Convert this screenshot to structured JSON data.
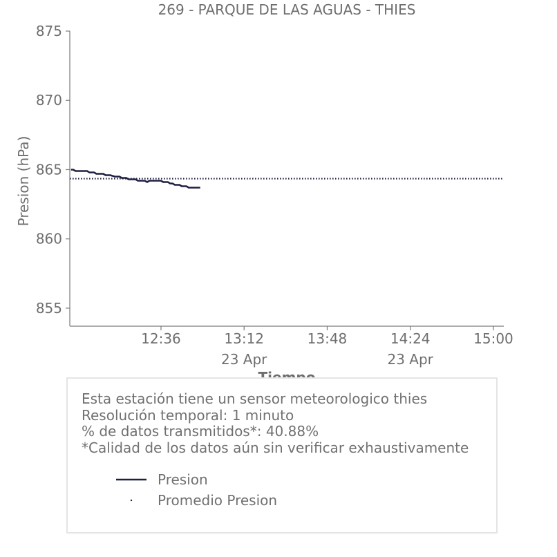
{
  "chart_data": {
    "type": "line",
    "title": "269 - PARQUE DE LAS AGUAS - THIES",
    "xlabel": "Tiempo",
    "ylabel": "Presion (hPa)",
    "ylim": [
      853.7,
      875
    ],
    "y_ticks": [
      855,
      860,
      865,
      870,
      875
    ],
    "x_tick_labels": [
      {
        "time": "12:36",
        "date": ""
      },
      {
        "time": "13:12",
        "date": "23 Apr"
      },
      {
        "time": "13:48",
        "date": ""
      },
      {
        "time": "14:24",
        "date": "23 Apr"
      },
      {
        "time": "15:00",
        "date": ""
      }
    ],
    "xlim_minutes": [
      716.5,
      904.5
    ],
    "x_tick_minutes": [
      756,
      792,
      828,
      864,
      900
    ],
    "series": [
      {
        "name": "Presion",
        "color": "#1f2041",
        "style": "solid",
        "points": [
          [
            717,
            865.0
          ],
          [
            718,
            865.0
          ],
          [
            719,
            864.9
          ],
          [
            720,
            864.9
          ],
          [
            721,
            864.9
          ],
          [
            722,
            864.9
          ],
          [
            724,
            864.9
          ],
          [
            725,
            864.8
          ],
          [
            726,
            864.8
          ],
          [
            727,
            864.8
          ],
          [
            728,
            864.7
          ],
          [
            729,
            864.7
          ],
          [
            730,
            864.7
          ],
          [
            731,
            864.7
          ],
          [
            732,
            864.6
          ],
          [
            733,
            864.6
          ],
          [
            734,
            864.6
          ],
          [
            736,
            864.5
          ],
          [
            737,
            864.5
          ],
          [
            738,
            864.5
          ],
          [
            739,
            864.4
          ],
          [
            740,
            864.4
          ],
          [
            741,
            864.4
          ],
          [
            742,
            864.3
          ],
          [
            743,
            864.3
          ],
          [
            744,
            864.3
          ],
          [
            745,
            864.3
          ],
          [
            746,
            864.2
          ],
          [
            747,
            864.2
          ],
          [
            748,
            864.2
          ],
          [
            749,
            864.2
          ],
          [
            750,
            864.1
          ],
          [
            751,
            864.2
          ],
          [
            752,
            864.2
          ],
          [
            754,
            864.2
          ],
          [
            755,
            864.2
          ],
          [
            756,
            864.2
          ],
          [
            757,
            864.1
          ],
          [
            758,
            864.1
          ],
          [
            759,
            864.1
          ],
          [
            760,
            864.0
          ],
          [
            761,
            864.0
          ],
          [
            762,
            863.9
          ],
          [
            763,
            863.9
          ],
          [
            764,
            863.9
          ],
          [
            765,
            863.8
          ],
          [
            766,
            863.8
          ],
          [
            767,
            863.8
          ],
          [
            768,
            863.7
          ],
          [
            770,
            863.7
          ],
          [
            772,
            863.7
          ],
          [
            773,
            863.7
          ]
        ]
      },
      {
        "name": "Promedio Presion",
        "color": "#1f2041",
        "style": "dotted",
        "value": 864.35,
        "x_range": [
          716.5,
          904.5
        ]
      }
    ],
    "legend": [
      "Presion",
      "Promedio Presion"
    ],
    "grid": false
  },
  "info": {
    "lines": [
      "Esta estación tiene un sensor meteorologico thies",
      "Resolución temporal: 1 minuto",
      "% de datos transmitidos*: 40.88%",
      "*Calidad de los datos aún sin verificar exhaustivamente"
    ]
  }
}
